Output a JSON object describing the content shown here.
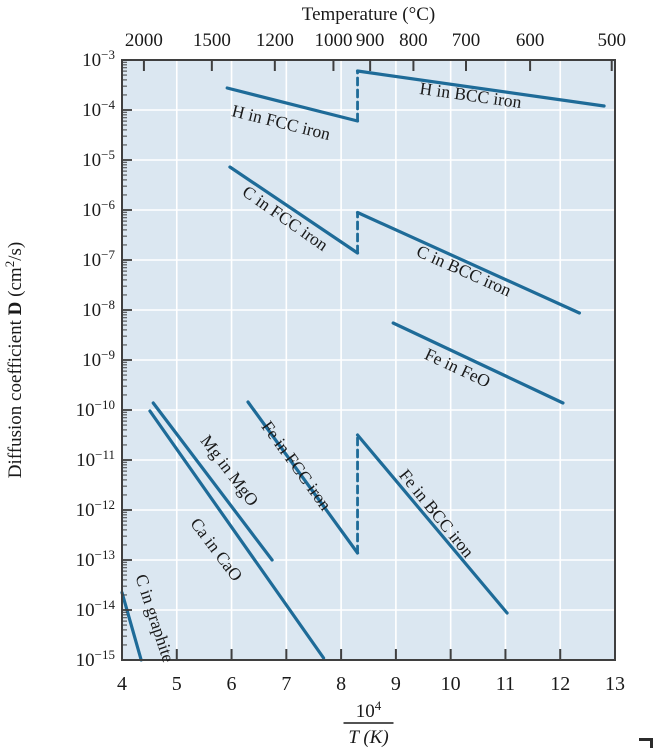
{
  "chart_data": {
    "type": "line",
    "top_axis": {
      "title": "Temperature (°C)",
      "ticks": [
        {
          "label": "2000",
          "x": 4.4
        },
        {
          "label": "1500",
          "x": 5.64
        },
        {
          "label": "1200",
          "x": 6.79
        },
        {
          "label": "1000",
          "x": 7.86
        },
        {
          "label": "900",
          "x": 8.53
        },
        {
          "label": "800",
          "x": 9.32
        },
        {
          "label": "700",
          "x": 10.28
        },
        {
          "label": "600",
          "x": 11.45
        },
        {
          "label": "500",
          "x": 12.94
        }
      ]
    },
    "x_axis": {
      "title_numerator_base": "10",
      "title_numerator_exponent": "4",
      "title_denominator": "T (K)",
      "range": [
        4,
        13
      ],
      "ticks": [
        4,
        5,
        6,
        7,
        8,
        9,
        10,
        11,
        12,
        13
      ]
    },
    "y_axis": {
      "title_prefix": "Diffusion coefficient ",
      "title_bold": "D",
      "title_unit_base": " (cm",
      "title_unit_exponent": "2",
      "title_unit_suffix": "/s)",
      "tick_base": "10",
      "tick_exponents": [
        -3,
        -4,
        -5,
        -6,
        -7,
        -8,
        -9,
        -10,
        -11,
        -12,
        -13,
        -14,
        -15
      ],
      "log10_range": [
        -15,
        -3
      ]
    },
    "grid": {
      "show": true,
      "color": "#ffffff"
    },
    "colors": {
      "line": "#1e6b98",
      "plot_background": "#dbe7f1",
      "axis": "#3f3f3f",
      "text": "#1a1a1a"
    },
    "series": [
      {
        "name": "H in FCC iron",
        "style": "solid",
        "points": [
          [
            5.92,
            -3.56
          ],
          [
            8.3,
            -4.22
          ]
        ]
      },
      {
        "name": "H phase transition",
        "style": "dashed",
        "points": [
          [
            8.3,
            -4.22
          ],
          [
            8.3,
            -3.22
          ]
        ]
      },
      {
        "name": "H in BCC iron",
        "style": "solid",
        "points": [
          [
            8.3,
            -3.22
          ],
          [
            12.8,
            -3.92
          ]
        ]
      },
      {
        "name": "C in FCC iron",
        "style": "solid",
        "points": [
          [
            5.97,
            -5.14
          ],
          [
            8.3,
            -6.86
          ]
        ]
      },
      {
        "name": "C phase transition",
        "style": "dashed",
        "points": [
          [
            8.3,
            -6.86
          ],
          [
            8.3,
            -6.05
          ]
        ]
      },
      {
        "name": "C in BCC iron",
        "style": "solid",
        "points": [
          [
            8.3,
            -6.05
          ],
          [
            12.35,
            -8.06
          ]
        ]
      },
      {
        "name": "Fe in FeO",
        "style": "solid",
        "points": [
          [
            8.95,
            -8.26
          ],
          [
            12.05,
            -9.86
          ]
        ]
      },
      {
        "name": "Fe in FCC iron",
        "style": "solid",
        "points": [
          [
            6.3,
            -9.84
          ],
          [
            8.3,
            -12.86
          ]
        ]
      },
      {
        "name": "Fe phase transition",
        "style": "dashed",
        "points": [
          [
            8.3,
            -12.86
          ],
          [
            8.3,
            -10.5
          ]
        ]
      },
      {
        "name": "Fe in BCC iron",
        "style": "solid",
        "points": [
          [
            8.3,
            -10.5
          ],
          [
            11.03,
            -14.06
          ]
        ]
      },
      {
        "name": "Mg in MgO",
        "style": "solid",
        "points": [
          [
            4.57,
            -9.86
          ],
          [
            6.74,
            -13.0
          ]
        ]
      },
      {
        "name": "Ca in CaO",
        "style": "solid",
        "points": [
          [
            4.51,
            -10.02
          ],
          [
            7.68,
            -14.96
          ]
        ]
      },
      {
        "name": "C in graphite",
        "style": "solid",
        "points": [
          [
            4.0,
            -13.65
          ],
          [
            4.35,
            -15.0
          ]
        ]
      }
    ],
    "labels": [
      {
        "text": "H in FCC iron",
        "x": 6.88,
        "log_d": -4.36,
        "rotation": 14
      },
      {
        "text": "H in BCC iron",
        "x": 10.35,
        "log_d": -3.82,
        "rotation": 8
      },
      {
        "text": "C in FCC iron",
        "x": 6.92,
        "log_d": -6.26,
        "rotation": 35
      },
      {
        "text": "C in BCC iron",
        "x": 10.2,
        "log_d": -7.32,
        "rotation": 24
      },
      {
        "text": "Fe in FeO",
        "x": 10.08,
        "log_d": -9.26,
        "rotation": 25
      },
      {
        "text": "Fe in FCC iron",
        "x": 7.1,
        "log_d": -11.18,
        "rotation": 54
      },
      {
        "text": "Fe in BCC iron",
        "x": 9.66,
        "log_d": -12.14,
        "rotation": 51
      },
      {
        "text": "Mg in MgO",
        "x": 5.88,
        "log_d": -11.28,
        "rotation": 53
      },
      {
        "text": "Ca in CaO",
        "x": 5.64,
        "log_d": -12.86,
        "rotation": 53
      },
      {
        "text": "C in graphite",
        "x": 4.5,
        "log_d": -14.2,
        "rotation": 72
      }
    ]
  }
}
